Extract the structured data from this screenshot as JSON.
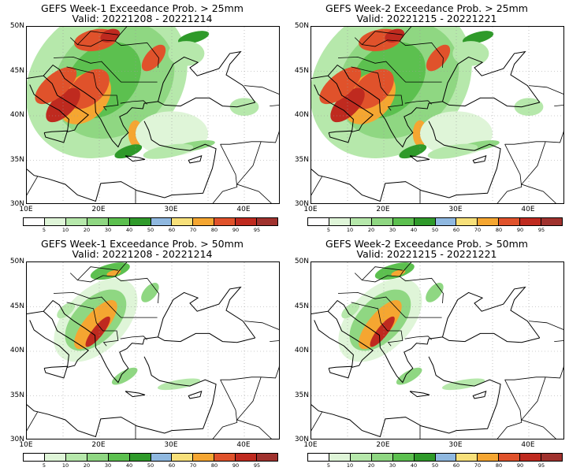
{
  "panels": [
    {
      "title_line1": "GEFS Week-1 Exceedance Prob. > 25mm",
      "title_line2": "Valid: 20221208 - 20221214",
      "threshold_mm": 25,
      "week": 1
    },
    {
      "title_line1": "GEFS Week-2 Exceedance Prob. > 25mm",
      "title_line2": "Valid: 20221215 - 20221221",
      "threshold_mm": 25,
      "week": 2
    },
    {
      "title_line1": "GEFS Week-1 Exceedance Prob. > 50mm",
      "title_line2": "Valid: 20221208 - 20221214",
      "threshold_mm": 50,
      "week": 1
    },
    {
      "title_line1": "GEFS Week-2 Exceedance Prob. > 50mm",
      "title_line2": "Valid: 20221215 - 20221221",
      "threshold_mm": 50,
      "week": 2
    }
  ],
  "axes": {
    "lat_labels": [
      "50N",
      "45N",
      "40N",
      "35N",
      "30N"
    ],
    "lon_labels": [
      "10E",
      "20E",
      "30E",
      "40E"
    ],
    "lat_range": [
      30,
      50
    ],
    "lon_range": [
      10,
      45
    ]
  },
  "colorbar": {
    "labels": [
      "5",
      "10",
      "20",
      "30",
      "40",
      "50",
      "60",
      "70",
      "80",
      "90",
      "95"
    ],
    "colors": [
      "#ffffff",
      "#dff5d8",
      "#b6e8ab",
      "#8fd782",
      "#5cc04f",
      "#2f9a2a",
      "#8fb8e0",
      "#f7e07a",
      "#f5a631",
      "#e0522b",
      "#bf2a1f",
      "#a0322e"
    ]
  }
}
